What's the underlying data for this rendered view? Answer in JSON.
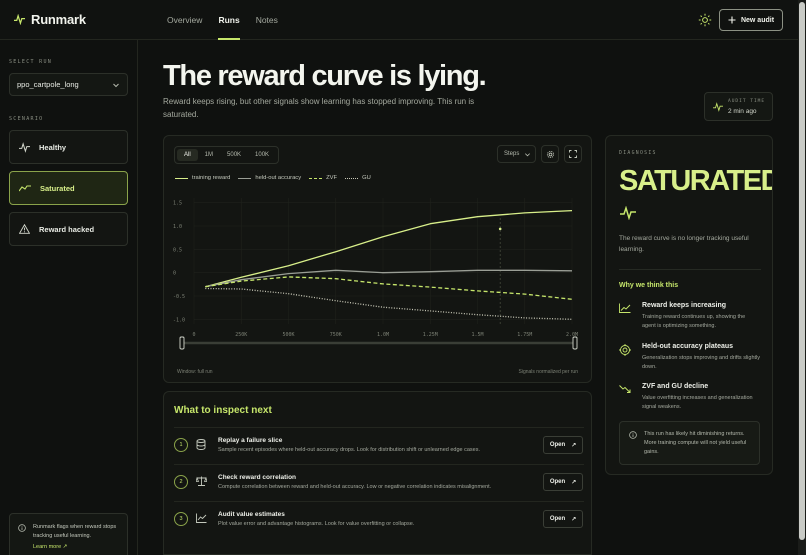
{
  "app": {
    "name": "Runmark"
  },
  "nav": {
    "items": [
      "Overview",
      "Runs",
      "Notes"
    ],
    "active": "Runs"
  },
  "header": {
    "new_audit_label": "New audit"
  },
  "sidebar": {
    "select_run_label": "SELECT RUN",
    "run_value": "ppo_cartpole_long",
    "scenario_label": "SCENARIO",
    "scenarios": [
      {
        "label": "Healthy",
        "icon": "pulse-icon"
      },
      {
        "label": "Saturated",
        "icon": "trend-flat-icon",
        "active": true
      },
      {
        "label": "Reward hacked",
        "icon": "warning-icon"
      }
    ],
    "note_text": "Runmark flags when reward stops tracking useful learning.",
    "note_link": "Learn more"
  },
  "hero": {
    "title": "The reward curve is lying.",
    "subtitle": "Reward keeps rising, but other signals show learning has stopped improving. This run is saturated.",
    "audit_time_label": "AUDIT TIME",
    "audit_time_value": "2 min ago"
  },
  "chart": {
    "range_tabs": [
      "All",
      "1M",
      "500K",
      "100K"
    ],
    "range_active": "All",
    "axis_select": "Steps",
    "footer_left": "Window: full run",
    "footer_right": "Signals normalized per run"
  },
  "chart_data": {
    "type": "line",
    "x": [
      0,
      250000,
      500000,
      750000,
      1000000,
      1250000,
      1500000,
      1750000,
      2000000
    ],
    "x_tick_labels": [
      "0",
      "250K",
      "500K",
      "750K",
      "1.0M",
      "1.25M",
      "1.5M",
      "1.75M",
      "2.0M"
    ],
    "y_ticks": [
      1.5,
      1.0,
      0.5,
      0,
      -0.5,
      -1.0
    ],
    "y_tick_labels": [
      "1.5",
      "1.0",
      "0.5",
      "0",
      "-0.5",
      "-1.0"
    ],
    "ylim": [
      -1.1,
      1.6
    ],
    "xlim": [
      0,
      2000000
    ],
    "grid": true,
    "legend_position": "top-left",
    "series": [
      {
        "name": "training reward",
        "style": "solid",
        "color": "#d8ef8a",
        "x": [
          60000,
          250000,
          500000,
          750000,
          1000000,
          1250000,
          1500000,
          1750000,
          2000000
        ],
        "values": [
          -0.3,
          -0.1,
          0.15,
          0.45,
          0.77,
          1.05,
          1.2,
          1.28,
          1.33
        ]
      },
      {
        "name": "held-out accuracy",
        "style": "solid",
        "color": "#9a9e95",
        "x": [
          60000,
          250000,
          500000,
          750000,
          1000000,
          1250000,
          1500000,
          1750000,
          2000000
        ],
        "values": [
          -0.3,
          -0.15,
          -0.02,
          0.05,
          0.0,
          0.02,
          0.05,
          0.05,
          0.04
        ]
      },
      {
        "name": "ZVF",
        "style": "dashed",
        "color": "#c6e66b",
        "x": [
          60000,
          250000,
          500000,
          750000,
          1000000,
          1250000,
          1500000,
          1750000,
          2000000
        ],
        "values": [
          -0.3,
          -0.18,
          -0.09,
          -0.13,
          -0.24,
          -0.31,
          -0.39,
          -0.46,
          -0.57
        ]
      },
      {
        "name": "GU",
        "style": "dotted",
        "color": "#c9c9b8",
        "x": [
          60000,
          250000,
          500000,
          750000,
          1000000,
          1250000,
          1500000,
          1750000,
          2000000
        ],
        "values": [
          -0.34,
          -0.35,
          -0.45,
          -0.6,
          -0.74,
          -0.82,
          -0.9,
          -0.97,
          -1.0
        ]
      }
    ],
    "marker_x": 1620000
  },
  "inspect": {
    "title": "What to inspect next",
    "open_label": "Open",
    "steps": [
      {
        "num": "1",
        "icon": "database-icon",
        "title": "Replay a failure slice",
        "desc": "Sample recent episodes where held-out accuracy drops. Look for distribution shift or unlearned edge cases."
      },
      {
        "num": "2",
        "icon": "scale-icon",
        "title": "Check reward correlation",
        "desc": "Compute correlation between reward and held-out accuracy. Low or negative correlation indicates misalignment."
      },
      {
        "num": "3",
        "icon": "line-chart-icon",
        "title": "Audit value estimates",
        "desc": "Plot value error and advantage histograms. Look for value overfitting or collapse."
      }
    ]
  },
  "diagnosis": {
    "label": "DIAGNOSIS",
    "verdict": "SATURATED",
    "desc": "The reward curve is no longer tracking useful learning.",
    "why_title": "Why we think this",
    "reasons": [
      {
        "icon": "trend-up-icon",
        "title": "Reward keeps increasing",
        "desc": "Training reward continues up, showing the agent is optimizing something."
      },
      {
        "icon": "target-icon",
        "title": "Held-out accuracy plateaus",
        "desc": "Generalization stops improving and drifts slightly down."
      },
      {
        "icon": "trend-down-icon",
        "title": "ZVF and GU decline",
        "desc": "Value overfitting increases and generalization signal weakens."
      }
    ],
    "note": "This run has likely hit diminishing returns. More training compute will not yield useful gains."
  },
  "colors": {
    "accent": "#c6e66b",
    "background": "#0f110f",
    "panel": "#131512"
  }
}
